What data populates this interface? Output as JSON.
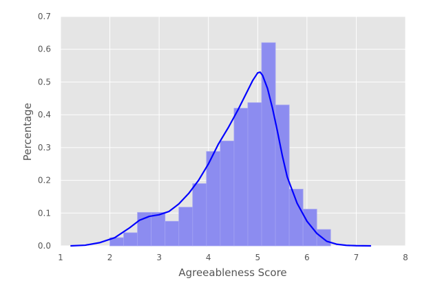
{
  "chart_data": {
    "type": "bar",
    "title": "",
    "xlabel": "Agreeableness Score",
    "ylabel": "Percentage",
    "xlim": [
      1,
      8
    ],
    "ylim": [
      0,
      0.7
    ],
    "xticks": [
      1,
      2,
      3,
      4,
      5,
      6,
      7,
      8
    ],
    "yticks": [
      0.0,
      0.1,
      0.2,
      0.3,
      0.4,
      0.5,
      0.6,
      0.7
    ],
    "xtick_labels": [
      "1",
      "2",
      "3",
      "4",
      "5",
      "6",
      "7",
      "8"
    ],
    "ytick_labels": [
      "0.0",
      "0.1",
      "0.2",
      "0.3",
      "0.4",
      "0.5",
      "0.6",
      "0.7"
    ],
    "grid": true,
    "background_color": "#e5e5e5",
    "bar_color": "#8c8cf0",
    "kde_color": "#0000ff",
    "histogram": {
      "bins": [
        {
          "x0": 2.0,
          "x1": 2.28,
          "value": 0.025
        },
        {
          "x0": 2.28,
          "x1": 2.56,
          "value": 0.04
        },
        {
          "x0": 2.56,
          "x1": 2.84,
          "value": 0.102
        },
        {
          "x0": 2.84,
          "x1": 3.12,
          "value": 0.102
        },
        {
          "x0": 3.12,
          "x1": 3.4,
          "value": 0.075
        },
        {
          "x0": 3.4,
          "x1": 3.68,
          "value": 0.118
        },
        {
          "x0": 3.68,
          "x1": 3.96,
          "value": 0.19
        },
        {
          "x0": 3.96,
          "x1": 4.24,
          "value": 0.288
        },
        {
          "x0": 4.24,
          "x1": 4.52,
          "value": 0.32
        },
        {
          "x0": 4.52,
          "x1": 4.8,
          "value": 0.42
        },
        {
          "x0": 4.8,
          "x1": 5.08,
          "value": 0.437
        },
        {
          "x0": 5.08,
          "x1": 5.36,
          "value": 0.62
        },
        {
          "x0": 5.36,
          "x1": 5.64,
          "value": 0.43
        },
        {
          "x0": 5.64,
          "x1": 5.92,
          "value": 0.173
        },
        {
          "x0": 5.92,
          "x1": 6.2,
          "value": 0.112
        },
        {
          "x0": 6.2,
          "x1": 6.48,
          "value": 0.05
        }
      ]
    },
    "kde": {
      "x": [
        1.2,
        1.5,
        1.8,
        2.1,
        2.4,
        2.6,
        2.8,
        3.0,
        3.2,
        3.4,
        3.6,
        3.8,
        4.0,
        4.2,
        4.4,
        4.6,
        4.8,
        4.9,
        5.0,
        5.05,
        5.1,
        5.2,
        5.3,
        5.4,
        5.5,
        5.6,
        5.8,
        6.0,
        6.2,
        6.4,
        6.6,
        6.8,
        7.0,
        7.3
      ],
      "y": [
        0.0,
        0.002,
        0.01,
        0.025,
        0.055,
        0.078,
        0.09,
        0.095,
        0.105,
        0.128,
        0.16,
        0.2,
        0.25,
        0.31,
        0.36,
        0.415,
        0.475,
        0.505,
        0.528,
        0.53,
        0.52,
        0.48,
        0.42,
        0.35,
        0.275,
        0.21,
        0.13,
        0.075,
        0.038,
        0.014,
        0.005,
        0.0015,
        0.0005,
        0.0
      ]
    }
  }
}
